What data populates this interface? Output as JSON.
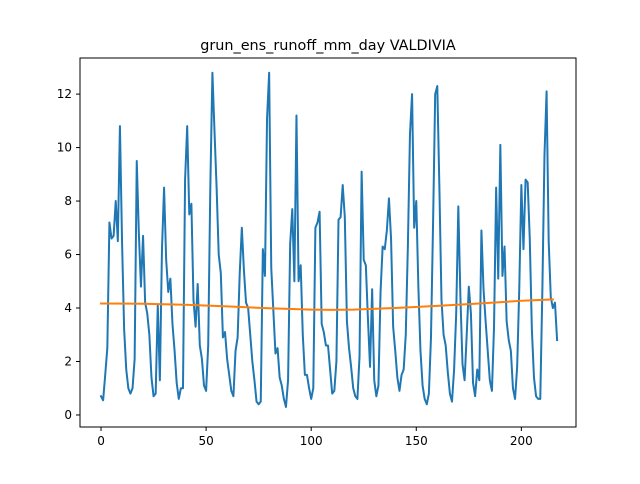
{
  "chart_data": {
    "type": "line",
    "title": "grun_ens_runoff_mm_day VALDIVIA",
    "xlabel": "",
    "ylabel": "",
    "xlim": [
      -10,
      226
    ],
    "ylim": [
      -0.45,
      13.35
    ],
    "xticks": [
      0,
      50,
      100,
      150,
      200
    ],
    "yticks": [
      0,
      2,
      4,
      6,
      8,
      10,
      12
    ],
    "grid": false,
    "colors": {
      "series1": "#1f77b4",
      "series2": "#ff7f0e"
    },
    "series": [
      {
        "values": [
          0.7,
          0.55,
          1.5,
          2.5,
          7.2,
          6.6,
          6.7,
          8.0,
          6.5,
          10.8,
          6.5,
          3.2,
          1.7,
          1.0,
          0.8,
          1.0,
          2.1,
          9.5,
          6.8,
          4.8,
          6.7,
          4.2,
          3.8,
          3.0,
          1.4,
          0.7,
          0.8,
          4.1,
          1.3,
          6.2,
          8.5,
          5.8,
          4.6,
          5.1,
          3.4,
          2.4,
          1.2,
          0.6,
          1.0,
          1.0,
          8.8,
          10.8,
          7.5,
          7.9,
          4.3,
          3.3,
          4.9,
          2.6,
          2.1,
          1.1,
          0.9,
          2.6,
          8.5,
          12.8,
          10.6,
          8.5,
          6.0,
          5.3,
          2.9,
          3.1,
          2.1,
          1.5,
          0.9,
          0.7,
          2.4,
          2.9,
          5.3,
          7.0,
          5.4,
          4.2,
          4.0,
          3.0,
          2.0,
          1.3,
          0.5,
          0.4,
          0.5,
          6.2,
          5.2,
          11.1,
          12.8,
          5.5,
          3.9,
          2.3,
          2.5,
          1.4,
          1.1,
          0.6,
          0.3,
          1.3,
          6.4,
          7.7,
          5.0,
          11.2,
          5.0,
          5.6,
          3.0,
          1.5,
          1.5,
          1.0,
          0.6,
          1.0,
          7.0,
          7.2,
          7.6,
          3.4,
          3.1,
          2.6,
          2.6,
          1.7,
          0.8,
          0.9,
          2.0,
          7.3,
          7.4,
          8.6,
          7.4,
          3.5,
          2.5,
          1.8,
          1.0,
          0.7,
          0.6,
          2.2,
          9.1,
          5.8,
          5.6,
          3.6,
          1.8,
          4.7,
          1.3,
          0.7,
          1.1,
          4.6,
          6.3,
          6.2,
          6.9,
          8.1,
          6.6,
          3.3,
          2.4,
          1.4,
          0.9,
          1.5,
          1.7,
          3.0,
          6.3,
          10.5,
          12.0,
          7.0,
          8.0,
          4.8,
          2.4,
          1.1,
          0.6,
          0.4,
          0.8,
          2.9,
          7.2,
          12.0,
          12.3,
          8.5,
          4.3,
          3.0,
          2.6,
          1.6,
          0.8,
          0.5,
          1.7,
          3.8,
          7.8,
          4.4,
          1.9,
          1.3,
          3.0,
          4.8,
          3.8,
          1.2,
          0.7,
          1.7,
          1.3,
          6.9,
          4.7,
          3.5,
          2.4,
          1.3,
          0.9,
          3.3,
          8.5,
          5.1,
          10.1,
          5.2,
          6.3,
          3.5,
          2.8,
          2.4,
          1.0,
          0.6,
          1.8,
          4.7,
          8.6,
          6.2,
          8.8,
          8.7,
          6.6,
          3.2,
          1.4,
          0.7,
          0.6,
          0.6,
          4.7,
          9.7,
          12.1,
          6.5,
          4.4,
          4.0,
          4.2,
          2.8
        ]
      },
      {
        "x": [
          0,
          20,
          40,
          60,
          80,
          100,
          110,
          120,
          140,
          160,
          180,
          200,
          215
        ],
        "values": [
          4.17,
          4.16,
          4.12,
          4.06,
          3.99,
          3.94,
          3.93,
          3.94,
          4.0,
          4.08,
          4.17,
          4.27,
          4.32
        ]
      }
    ]
  }
}
